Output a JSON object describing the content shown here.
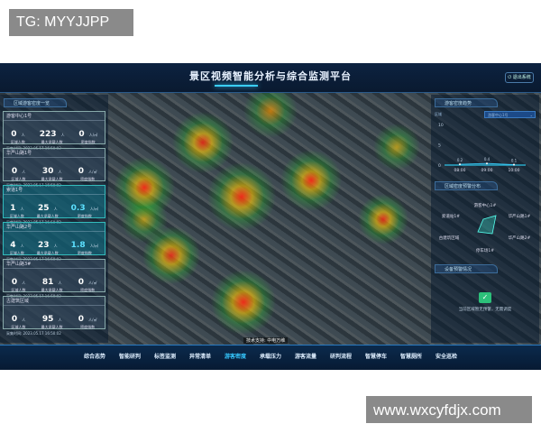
{
  "watermarks": {
    "top_left": "TG: MYYJJPP",
    "bottom_right": "www.wxcyfdjx.com"
  },
  "header": {
    "title": "景区视频智能分析与综合监测平台",
    "exit_label": "退出系统"
  },
  "left_panel": {
    "title": "区域游客密度一览",
    "cards": [
      {
        "name": "游客中心1号",
        "count": "0",
        "max": "223",
        "index": "0",
        "index_unit": "人/㎡",
        "highlight": false,
        "time": "采集时间: 2023.05.17 16:50:02"
      },
      {
        "name": "华严山路1号",
        "count": "0",
        "max": "30",
        "index": "0",
        "index_unit": "人/㎡",
        "highlight": false,
        "time": "采集时间: 2023.05.17 16:50:02"
      },
      {
        "name": "索道1号",
        "count": "1",
        "max": "25",
        "index": "0.3",
        "index_unit": "人/㎡",
        "highlight": true,
        "time": "采集时间: 2023.05.17 16:50:02"
      },
      {
        "name": "华严山路2号",
        "count": "4",
        "max": "23",
        "index": "1.8",
        "index_unit": "人/㎡",
        "highlight": true,
        "time": "采集时间: 2023.05.17 16:50:02"
      },
      {
        "name": "华严山路3#",
        "count": "0",
        "max": "81",
        "index": "0",
        "index_unit": "人/㎡",
        "highlight": false,
        "time": "采集时间: 2023.05.17 16:50:02"
      },
      {
        "name": "古建筑区域",
        "count": "0",
        "max": "95",
        "index": "0",
        "index_unit": "人/㎡",
        "highlight": false,
        "time": "采集时间: 2023.05.17 16:50:02"
      }
    ],
    "labels": {
      "count": "区域人数",
      "max": "最大承载人数",
      "index": "密度指数",
      "unit_person": "人"
    }
  },
  "right_panel": {
    "trend": {
      "title": "游客密度趋势",
      "select_label": "区域",
      "select_value": "游客中心1号",
      "chart_data": {
        "type": "line",
        "x": [
          "08:00",
          "09:00",
          "10:00"
        ],
        "values": [
          0.2,
          0.4,
          0.1
        ],
        "yticks": [
          0,
          5,
          10
        ],
        "ylim": [
          0,
          10
        ]
      }
    },
    "distribution": {
      "title": "区域密度预警分布",
      "labels": [
        "游客中心1#",
        "索道站1#",
        "华严山路1#",
        "古建筑区域",
        "华严山路2#",
        "停车场1#"
      ]
    },
    "warning": {
      "title": "设备预警情况",
      "message": "当前区域暂无预警，无需调度",
      "icon": "check-device-icon"
    }
  },
  "footer": {
    "tech_support": "技术支持: 中电万维",
    "nav": [
      {
        "label": "综合态势"
      },
      {
        "label": "智能研判"
      },
      {
        "label": "标签监测"
      },
      {
        "label": "异常清单"
      },
      {
        "label": "游客密度",
        "active": true
      },
      {
        "label": "承载压力"
      },
      {
        "label": "游客流量"
      },
      {
        "label": "研判流程"
      },
      {
        "label": "智慧停车"
      },
      {
        "label": "智慧厕所"
      },
      {
        "label": "安全巡检"
      }
    ]
  },
  "colors": {
    "accent": "#36c8ff",
    "highlight": "#14788c",
    "background": "#0b1a2a"
  }
}
